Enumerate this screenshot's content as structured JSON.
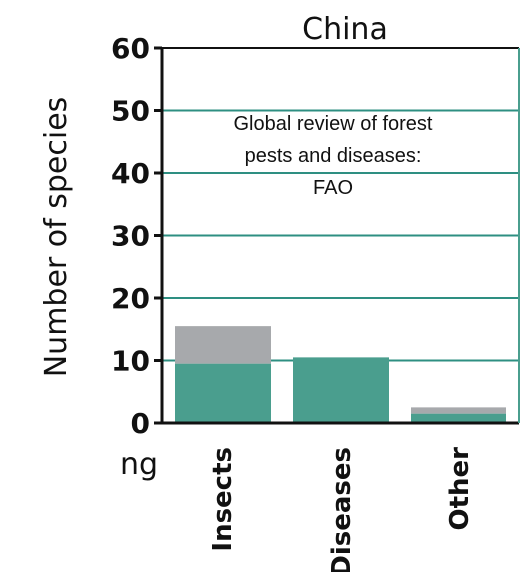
{
  "chart_data": {
    "type": "bar",
    "title": "China",
    "xlabel": "",
    "ylabel": "Number of species",
    "ylim": [
      0,
      60
    ],
    "yticks": [
      "0",
      "10",
      "20",
      "30",
      "40",
      "50",
      "60"
    ],
    "grid": true,
    "categories": [
      "Insects",
      "Diseases",
      "Other"
    ],
    "stacked": true,
    "series": [
      {
        "values": [
          9.5,
          10.5,
          1.5
        ],
        "color": "#4a9e8e"
      },
      {
        "values": [
          6,
          0,
          1
        ],
        "color": "#a7a9ac"
      }
    ],
    "annotation": [
      "Global review of forest",
      "pests and diseases:",
      "FAO"
    ]
  },
  "stray_text": "ng",
  "colors": {
    "grid": "#2e8f82",
    "axis": "#111111",
    "right_border": "#4a9e8e"
  }
}
